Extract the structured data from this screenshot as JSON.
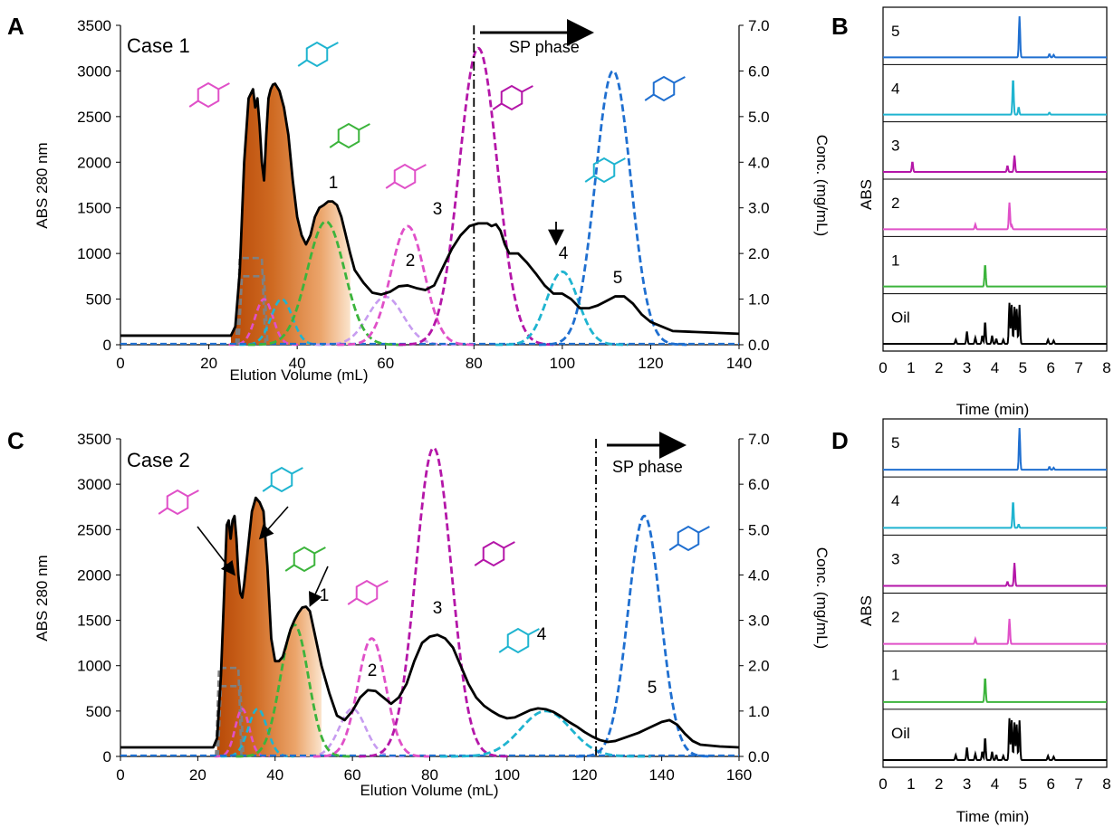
{
  "colors": {
    "black": "#000000",
    "c1": "#3cb43c",
    "c2": "#e050c8",
    "c2light": "#c79cf0",
    "c3": "#b416a8",
    "c4": "#1fb4d0",
    "c5": "#1f6fd0",
    "gray": "#808080",
    "fill_dark": "#c0540e",
    "fill_light": "#f8dcc0"
  },
  "panels": {
    "A": {
      "letter": "A",
      "case_label": "Case 1",
      "xlabel": "Elution Volume (mL)",
      "ylabel": "ABS 280 nm",
      "y2label": "Conc. (mg/mL)",
      "sp_label": "SP phase",
      "peak_labels": [
        "1",
        "2",
        "3",
        "4",
        "5"
      ]
    },
    "B": {
      "letter": "B",
      "xlabel": "Time (min)",
      "ylabel": "ABS",
      "trace_labels": [
        "5",
        "4",
        "3",
        "2",
        "1",
        "Oil"
      ]
    },
    "C": {
      "letter": "C",
      "case_label": "Case 2",
      "xlabel": "Elution Volume (mL)",
      "ylabel": "ABS 280 nm",
      "y2label": "Conc. (mg/mL)",
      "sp_label": "SP phase",
      "peak_labels": [
        "1",
        "2",
        "3",
        "4",
        "5"
      ]
    },
    "D": {
      "letter": "D",
      "xlabel": "Time (min)",
      "ylabel": "ABS",
      "trace_labels": [
        "5",
        "4",
        "3",
        "2",
        "1",
        "Oil"
      ]
    }
  },
  "chart_data": [
    {
      "panel": "A",
      "type": "line",
      "title": "Case 1",
      "xlabel": "Elution Volume (mL)",
      "ylabel": "ABS 280 nm",
      "y2label": "Conc. (mg/mL)",
      "xlim": [
        0,
        140
      ],
      "ylim": [
        0,
        3500
      ],
      "y2lim": [
        0,
        7.0
      ],
      "xticks": [
        "0",
        "20",
        "40",
        "60",
        "80",
        "100",
        "120",
        "140"
      ],
      "yticks": [
        "0",
        "500",
        "1000",
        "1500",
        "2000",
        "2500",
        "3000",
        "3500"
      ],
      "y2ticks": [
        "0.0",
        "1.0",
        "2.0",
        "3.0",
        "4.0",
        "5.0",
        "6.0",
        "7.0"
      ],
      "sp_phase_start": 80,
      "abs_trace": {
        "x": [
          0,
          25,
          26,
          27,
          28,
          29,
          29.5,
          30,
          30.5,
          31,
          31.5,
          32,
          32.5,
          33,
          33.5,
          34,
          34.5,
          35,
          35.5,
          36,
          37,
          38,
          39,
          40,
          41,
          42,
          43,
          44,
          45,
          46,
          47,
          48,
          49,
          50,
          51,
          52,
          53,
          55,
          57,
          59,
          61,
          63,
          65,
          67,
          69,
          71,
          73,
          75,
          77,
          79,
          81,
          83,
          84,
          85,
          86,
          87,
          88,
          90,
          92,
          94,
          96,
          98,
          100,
          102,
          104,
          106,
          108,
          110,
          112,
          114,
          116,
          118,
          120,
          125,
          130,
          135,
          140
        ],
        "y": [
          100,
          100,
          200,
          800,
          2000,
          2700,
          2750,
          2800,
          2600,
          2700,
          2400,
          2000,
          1800,
          2300,
          2700,
          2800,
          2850,
          2860,
          2820,
          2780,
          2600,
          2300,
          1800,
          1400,
          1200,
          1100,
          1200,
          1400,
          1500,
          1530,
          1570,
          1570,
          1530,
          1400,
          1200,
          1000,
          820,
          680,
          570,
          550,
          580,
          640,
          650,
          620,
          600,
          650,
          850,
          1050,
          1200,
          1300,
          1330,
          1330,
          1300,
          1320,
          1250,
          1100,
          1000,
          1000,
          900,
          780,
          650,
          560,
          560,
          500,
          400,
          400,
          430,
          480,
          530,
          530,
          450,
          330,
          250,
          150,
          140,
          130,
          120
        ]
      },
      "legend": [
        "ABS 280 nm (solid black)",
        "1",
        "2",
        "3",
        "4",
        "5"
      ],
      "series": [
        {
          "name": "1",
          "color": "#3cb43c",
          "dash": true,
          "center": 46.5,
          "sigma": 4.2,
          "peak_conc": 2.7
        },
        {
          "name": "2",
          "color": "#e050c8",
          "dash": true,
          "center": 65,
          "sigma": 3.8,
          "peak_conc": 2.6
        },
        {
          "name": "3",
          "color": "#b416a8",
          "dash": true,
          "center": 81,
          "sigma": 4.3,
          "peak_conc": 6.5
        },
        {
          "name": "4",
          "color": "#1fb4d0",
          "dash": true,
          "center": 100,
          "sigma": 3.6,
          "peak_conc": 1.6
        },
        {
          "name": "5",
          "color": "#1f6fd0",
          "dash": true,
          "center": 111.5,
          "sigma": 4.0,
          "peak_conc": 6.0
        }
      ],
      "minor_series": [
        {
          "color": "#808080",
          "center": 29.5,
          "plateau": [
            27,
            32
          ],
          "peak_conc": 1.9
        },
        {
          "color": "#808080",
          "center": 30,
          "plateau": [
            27.5,
            32.5
          ],
          "peak_conc": 1.5
        },
        {
          "color": "#e050c8",
          "center": 32.5,
          "sigma": 2.0,
          "peak_conc": 1.0
        },
        {
          "color": "#1fb4d0",
          "center": 36.5,
          "sigma": 2.4,
          "peak_conc": 1.0
        },
        {
          "color": "#c79cf0",
          "center": 60,
          "sigma": 4.0,
          "peak_conc": 1.05
        }
      ]
    },
    {
      "panel": "C",
      "type": "line",
      "title": "Case 2",
      "xlabel": "Elution Volume (mL)",
      "ylabel": "ABS 280 nm",
      "y2label": "Conc. (mg/mL)",
      "xlim": [
        0,
        160
      ],
      "ylim": [
        0,
        3500
      ],
      "y2lim": [
        0,
        7.0
      ],
      "xticks": [
        "0",
        "20",
        "40",
        "60",
        "80",
        "100",
        "120",
        "140",
        "160"
      ],
      "yticks": [
        "0",
        "500",
        "1000",
        "1500",
        "2000",
        "2500",
        "3000",
        "3500"
      ],
      "y2ticks": [
        "0.0",
        "1.0",
        "2.0",
        "3.0",
        "4.0",
        "5.0",
        "6.0",
        "7.0"
      ],
      "sp_phase_start": 123,
      "abs_trace": {
        "x": [
          0,
          24,
          25,
          26,
          27,
          27.5,
          28,
          28.5,
          29,
          29.5,
          30,
          30.5,
          31,
          31.5,
          32,
          33,
          34,
          35,
          36,
          37,
          38,
          39,
          40,
          41,
          42,
          43,
          44,
          45,
          46,
          47,
          48,
          49,
          50,
          52,
          54,
          56,
          58,
          60,
          62,
          64,
          66,
          68,
          70,
          72,
          74,
          76,
          78,
          80,
          82,
          84,
          86,
          88,
          90,
          92,
          94,
          96,
          98,
          100,
          102,
          104,
          106,
          108,
          110,
          112,
          114,
          116,
          118,
          120,
          122,
          124,
          126,
          128,
          130,
          132,
          134,
          136,
          138,
          140,
          142,
          144,
          146,
          148,
          150,
          155,
          160
        ],
        "y": [
          100,
          100,
          200,
          900,
          2000,
          2550,
          2600,
          2400,
          2600,
          2650,
          2400,
          2000,
          1800,
          1750,
          1900,
          2300,
          2700,
          2850,
          2800,
          2700,
          2100,
          1300,
          1050,
          1050,
          1100,
          1250,
          1400,
          1500,
          1580,
          1640,
          1650,
          1600,
          1400,
          1000,
          700,
          450,
          400,
          500,
          650,
          730,
          720,
          650,
          580,
          650,
          800,
          1050,
          1250,
          1320,
          1340,
          1300,
          1200,
          1000,
          800,
          650,
          560,
          500,
          450,
          420,
          430,
          470,
          510,
          530,
          520,
          490,
          440,
          380,
          330,
          270,
          220,
          180,
          160,
          170,
          200,
          230,
          260,
          300,
          340,
          380,
          400,
          350,
          250,
          170,
          130,
          110,
          100
        ]
      },
      "legend": [
        "ABS 280 nm (solid black)",
        "1",
        "2",
        "3",
        "4",
        "5"
      ],
      "series": [
        {
          "name": "1",
          "color": "#3cb43c",
          "dash": true,
          "center": 45,
          "sigma": 3.6,
          "peak_conc": 2.9
        },
        {
          "name": "2",
          "color": "#e050c8",
          "dash": true,
          "center": 65,
          "sigma": 3.6,
          "peak_conc": 2.6
        },
        {
          "name": "3",
          "color": "#b416a8",
          "dash": true,
          "center": 81,
          "sigma": 4.6,
          "peak_conc": 6.8
        },
        {
          "name": "4",
          "color": "#1fb4d0",
          "dash": true,
          "center": 110,
          "sigma": 6.5,
          "peak_conc": 1.0
        },
        {
          "name": "5",
          "color": "#1f6fd0",
          "dash": true,
          "center": 135.5,
          "sigma": 4.2,
          "peak_conc": 5.3
        }
      ],
      "minor_series": [
        {
          "color": "#808080",
          "center": 28,
          "plateau": [
            25.5,
            30.5
          ],
          "peak_conc": 1.95
        },
        {
          "color": "#808080",
          "center": 28.5,
          "plateau": [
            26,
            31
          ],
          "peak_conc": 1.55
        },
        {
          "color": "#e050c8",
          "center": 31.5,
          "sigma": 1.8,
          "peak_conc": 1.05
        },
        {
          "color": "#1fb4d0",
          "center": 35.5,
          "sigma": 2.4,
          "peak_conc": 1.05
        },
        {
          "color": "#c79cf0",
          "center": 60,
          "sigma": 3.4,
          "peak_conc": 1.05
        }
      ]
    },
    {
      "panel": "B",
      "type": "line",
      "xlabel": "Time (min)",
      "ylabel": "ABS",
      "xlim": [
        0,
        8
      ],
      "xticks": [
        "0",
        "1",
        "2",
        "3",
        "4",
        "5",
        "6",
        "7",
        "8"
      ],
      "traces": [
        {
          "name": "5",
          "color": "#1f6fd0",
          "peaks": [
            [
              4.88,
              1.0
            ],
            [
              5.95,
              0.08
            ],
            [
              6.1,
              0.06
            ]
          ]
        },
        {
          "name": "4",
          "color": "#1fb4d0",
          "peaks": [
            [
              4.65,
              0.9
            ],
            [
              4.85,
              0.18
            ],
            [
              5.95,
              0.05
            ]
          ]
        },
        {
          "name": "3",
          "color": "#b416a8",
          "peaks": [
            [
              1.05,
              0.25
            ],
            [
              4.45,
              0.15
            ],
            [
              4.7,
              0.4
            ]
          ]
        },
        {
          "name": "2",
          "color": "#e050c8",
          "peaks": [
            [
              3.3,
              0.12
            ],
            [
              4.52,
              0.65
            ],
            [
              4.6,
              0.1
            ]
          ]
        },
        {
          "name": "1",
          "color": "#3cb43c",
          "peaks": [
            [
              3.65,
              0.55
            ]
          ]
        },
        {
          "name": "Oil",
          "color": "#000000",
          "peaks": [
            [
              2.6,
              0.1
            ],
            [
              3.0,
              0.3
            ],
            [
              3.3,
              0.15
            ],
            [
              3.55,
              0.2
            ],
            [
              3.65,
              0.55
            ],
            [
              3.9,
              0.2
            ],
            [
              4.05,
              0.12
            ],
            [
              4.3,
              0.1
            ],
            [
              4.52,
              1.0
            ],
            [
              4.6,
              0.95
            ],
            [
              4.7,
              0.9
            ],
            [
              4.78,
              0.85
            ],
            [
              4.88,
              0.95
            ],
            [
              5.9,
              0.1
            ],
            [
              6.1,
              0.08
            ]
          ]
        }
      ]
    },
    {
      "panel": "D",
      "type": "line",
      "xlabel": "Time (min)",
      "ylabel": "ABS",
      "xlim": [
        0,
        8
      ],
      "xticks": [
        "0",
        "1",
        "2",
        "3",
        "4",
        "5",
        "6",
        "7",
        "8"
      ],
      "traces": [
        {
          "name": "5",
          "color": "#1f6fd0",
          "peaks": [
            [
              4.88,
              1.0
            ],
            [
              5.95,
              0.07
            ],
            [
              6.1,
              0.05
            ]
          ]
        },
        {
          "name": "4",
          "color": "#1fb4d0",
          "peaks": [
            [
              4.65,
              0.65
            ],
            [
              4.85,
              0.08
            ]
          ]
        },
        {
          "name": "3",
          "color": "#b416a8",
          "peaks": [
            [
              4.45,
              0.1
            ],
            [
              4.7,
              0.55
            ]
          ]
        },
        {
          "name": "2",
          "color": "#e050c8",
          "peaks": [
            [
              3.3,
              0.12
            ],
            [
              4.52,
              0.6
            ]
          ]
        },
        {
          "name": "1",
          "color": "#3cb43c",
          "peaks": [
            [
              3.65,
              0.6
            ]
          ]
        },
        {
          "name": "Oil",
          "color": "#000000",
          "peaks": [
            [
              2.6,
              0.12
            ],
            [
              3.0,
              0.3
            ],
            [
              3.3,
              0.15
            ],
            [
              3.55,
              0.2
            ],
            [
              3.65,
              0.55
            ],
            [
              3.9,
              0.2
            ],
            [
              4.05,
              0.12
            ],
            [
              4.3,
              0.1
            ],
            [
              4.52,
              1.0
            ],
            [
              4.6,
              0.95
            ],
            [
              4.7,
              0.9
            ],
            [
              4.78,
              0.85
            ],
            [
              4.88,
              0.95
            ],
            [
              5.9,
              0.1
            ],
            [
              6.1,
              0.08
            ]
          ]
        }
      ]
    }
  ]
}
